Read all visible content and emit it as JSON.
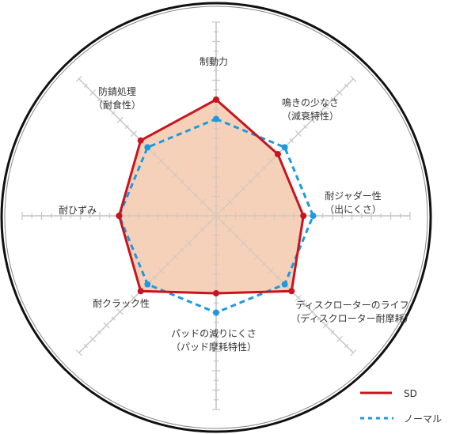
{
  "chart_data": {
    "type": "radar",
    "title": "",
    "axes": [
      {
        "label": [
          "制動力"
        ]
      },
      {
        "label": [
          "鳴きの少なさ",
          "（減衰特性）"
        ]
      },
      {
        "label": [
          "耐ジャダー性",
          "（出にくさ）"
        ]
      },
      {
        "label": [
          "ディスクローターのライフ",
          "（ディスクローター耐摩耗）"
        ]
      },
      {
        "label": [
          "パッドの減りにくさ",
          "（パッド摩耗特性）"
        ]
      },
      {
        "label": [
          "耐クラック性"
        ]
      },
      {
        "label": [
          "耐ひずみ"
        ]
      },
      {
        "label": [
          "防錆処理",
          "（耐食性）"
        ]
      }
    ],
    "range": [
      0,
      10
    ],
    "grid": true,
    "legend_position": "bottom-right",
    "series": [
      {
        "name": "SD",
        "values": [
          6,
          4.5,
          4.5,
          5.5,
          4,
          5.5,
          5,
          5.5
        ],
        "color": "#c8141e",
        "fill": "#f5c9ae",
        "style": "solid"
      },
      {
        "name": "ノーマル",
        "values": [
          5,
          5,
          5,
          5,
          5,
          5,
          5,
          5
        ],
        "color": "#1a9ae0",
        "style": "dashed"
      }
    ]
  }
}
